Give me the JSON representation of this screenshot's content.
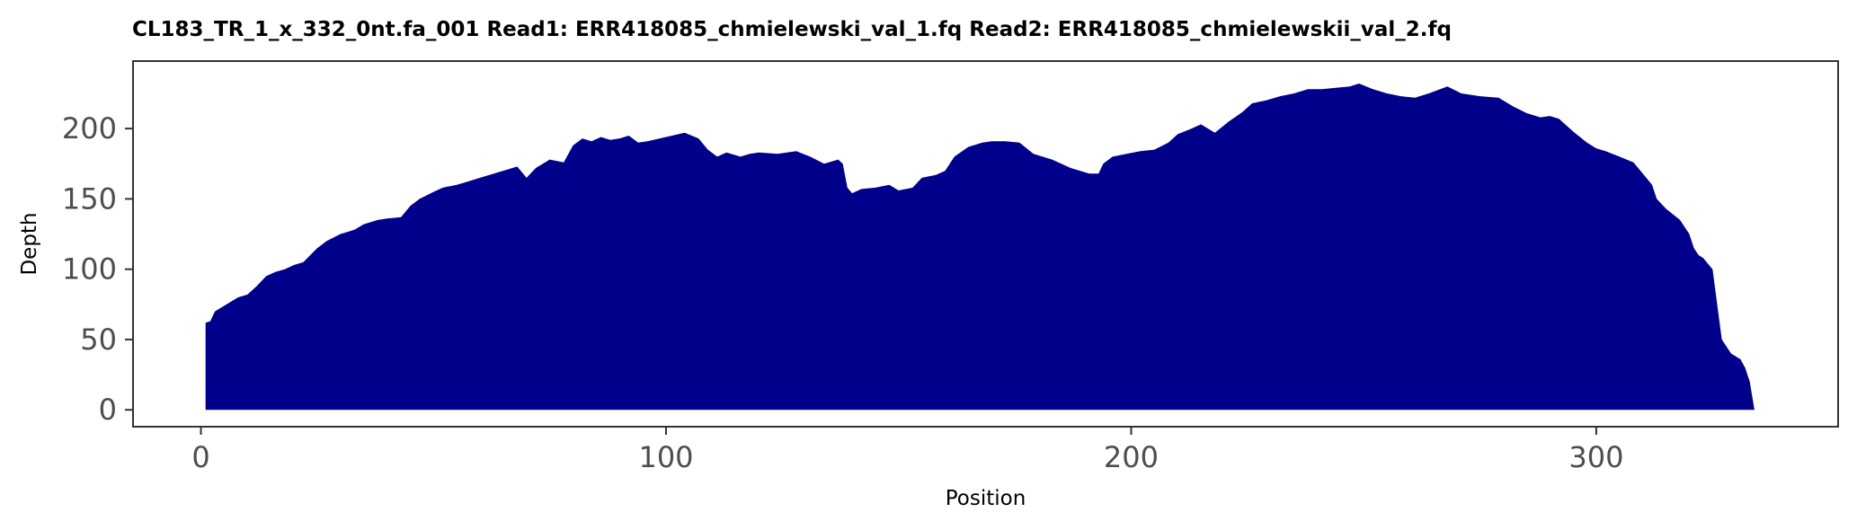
{
  "chart_data": {
    "type": "area",
    "title": "CL183_TR_1_x_332_0nt.fa_001   Read1: ERR418085_chmielewski_val_1.fq   Read2: ERR418085_chmielewskii_val_2.fq",
    "xlabel": "Position",
    "ylabel": "Depth",
    "xlim": [
      -14.6,
      352
    ],
    "ylim": [
      -12,
      248
    ],
    "x_ticks": [
      0,
      100,
      200,
      300
    ],
    "y_ticks": [
      0,
      50,
      100,
      150,
      200
    ],
    "grid": false,
    "legend": "none",
    "fill_color": "#00008B",
    "x": [
      1,
      2,
      3,
      5,
      8,
      10,
      12,
      14,
      16,
      18,
      20,
      22,
      25,
      27,
      30,
      33,
      35,
      38,
      40,
      43,
      45,
      47,
      50,
      52,
      55,
      58,
      60,
      62,
      65,
      68,
      70,
      72,
      75,
      78,
      80,
      82,
      84,
      86,
      88,
      90,
      92,
      94,
      96,
      100,
      104,
      107,
      109,
      111,
      113,
      116,
      118,
      120,
      124,
      128,
      131,
      134,
      137,
      138,
      139,
      140,
      142,
      145,
      148,
      150,
      153,
      155,
      158,
      160,
      162,
      165,
      168,
      170,
      173,
      176,
      179,
      183,
      187,
      191,
      193,
      194,
      196,
      199,
      202,
      205,
      208,
      210,
      213,
      215,
      218,
      221,
      224,
      226,
      229,
      232,
      235,
      238,
      241,
      244,
      247,
      249,
      252,
      255,
      258,
      261,
      264,
      268,
      271,
      275,
      279,
      282,
      285,
      288,
      290,
      292,
      295,
      298,
      300,
      302,
      305,
      308,
      310,
      312,
      313,
      315,
      318,
      320,
      321,
      322,
      323,
      325,
      327,
      329,
      331,
      332,
      333,
      334
    ],
    "y": [
      62,
      63,
      70,
      74,
      80,
      82,
      88,
      95,
      98,
      100,
      103,
      105,
      115,
      120,
      125,
      128,
      132,
      135,
      136,
      137,
      145,
      150,
      155,
      158,
      160,
      163,
      165,
      167,
      170,
      173,
      165,
      172,
      178,
      176,
      188,
      193,
      191,
      194,
      192,
      193,
      195,
      190,
      191,
      194,
      197,
      193,
      185,
      180,
      183,
      180,
      182,
      183,
      182,
      184,
      180,
      175,
      178,
      175,
      158,
      154,
      157,
      158,
      160,
      156,
      158,
      165,
      167,
      170,
      180,
      187,
      190,
      191,
      191,
      190,
      182,
      178,
      172,
      168,
      168,
      175,
      180,
      182,
      184,
      185,
      190,
      196,
      200,
      203,
      197,
      205,
      212,
      218,
      220,
      223,
      225,
      228,
      228,
      229,
      230,
      232,
      228,
      225,
      223,
      222,
      225,
      230,
      225,
      223,
      222,
      216,
      211,
      208,
      209,
      207,
      198,
      190,
      186,
      184,
      180,
      176,
      168,
      160,
      150,
      143,
      135,
      125,
      115,
      110,
      108,
      100,
      50,
      40,
      36,
      30,
      20,
      0
    ]
  }
}
